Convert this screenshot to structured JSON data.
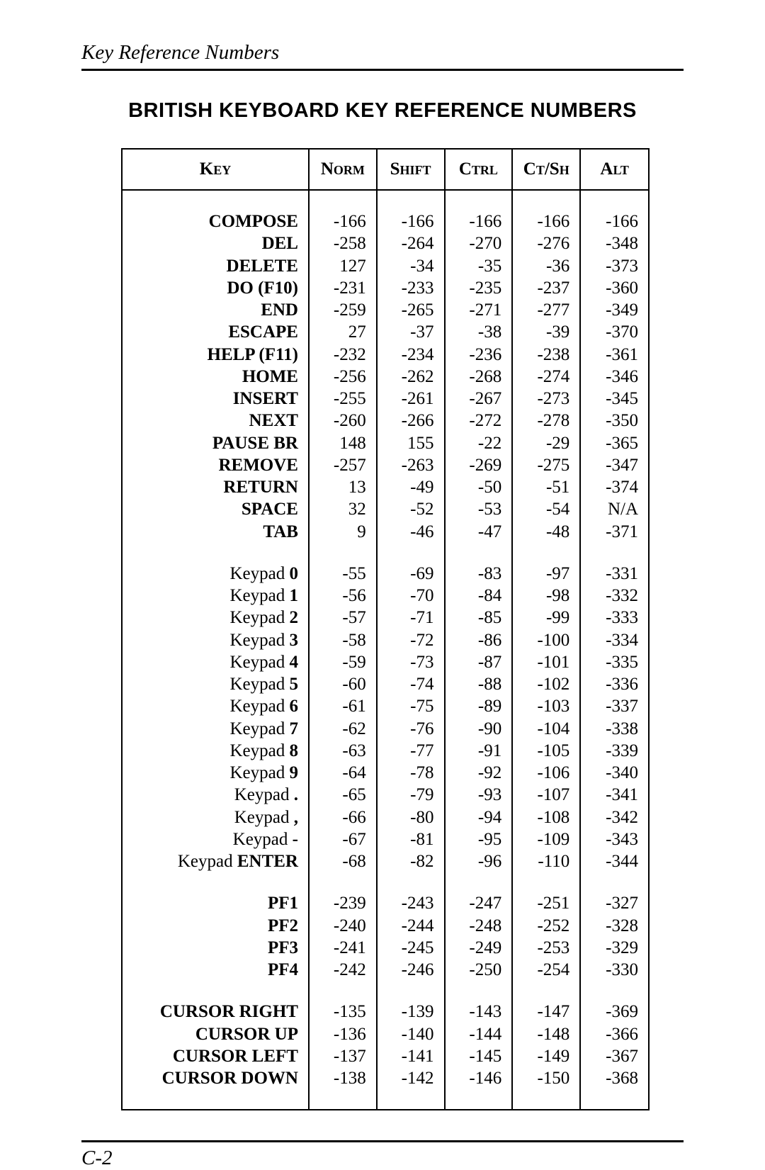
{
  "header": "Key Reference Numbers",
  "title": "BRITISH KEYBOARD KEY REFERENCE NUMBERS",
  "page_number": "C-2",
  "columns": [
    "Key",
    "Norm",
    "Shift",
    "Ctrl",
    "Ct/Sh",
    "Alt"
  ],
  "colors": {
    "text": "#000000",
    "bg": "#ffffff",
    "rule": "#000000"
  },
  "font_sizes": {
    "body": 25,
    "header": 29,
    "title": 29
  },
  "sections": [
    {
      "rows": [
        {
          "key_prefix": "",
          "key_bold": "COMPOSE",
          "norm": "-166",
          "shift": "-166",
          "ctrl": "-166",
          "ctsh": "-166",
          "alt": "-166"
        },
        {
          "key_prefix": "",
          "key_bold": "DEL",
          "norm": "-258",
          "shift": "-264",
          "ctrl": "-270",
          "ctsh": "-276",
          "alt": "-348"
        },
        {
          "key_prefix": "",
          "key_bold": "DELETE",
          "norm": "127",
          "shift": "-34",
          "ctrl": "-35",
          "ctsh": "-36",
          "alt": "-373"
        },
        {
          "key_prefix": "",
          "key_bold": "DO (F10)",
          "norm": "-231",
          "shift": "-233",
          "ctrl": "-235",
          "ctsh": "-237",
          "alt": "-360"
        },
        {
          "key_prefix": "",
          "key_bold": "END",
          "norm": "-259",
          "shift": "-265",
          "ctrl": "-271",
          "ctsh": "-277",
          "alt": "-349"
        },
        {
          "key_prefix": "",
          "key_bold": "ESCAPE",
          "norm": "27",
          "shift": "-37",
          "ctrl": "-38",
          "ctsh": "-39",
          "alt": "-370"
        },
        {
          "key_prefix": "",
          "key_bold": "HELP (F11)",
          "norm": "-232",
          "shift": "-234",
          "ctrl": "-236",
          "ctsh": "-238",
          "alt": "-361"
        },
        {
          "key_prefix": "",
          "key_bold": "HOME",
          "norm": "-256",
          "shift": "-262",
          "ctrl": "-268",
          "ctsh": "-274",
          "alt": "-346"
        },
        {
          "key_prefix": "",
          "key_bold": "INSERT",
          "norm": "-255",
          "shift": "-261",
          "ctrl": "-267",
          "ctsh": "-273",
          "alt": "-345"
        },
        {
          "key_prefix": "",
          "key_bold": "NEXT",
          "norm": "-260",
          "shift": "-266",
          "ctrl": "-272",
          "ctsh": "-278",
          "alt": "-350"
        },
        {
          "key_prefix": "",
          "key_bold": "PAUSE BR",
          "norm": "148",
          "shift": "155",
          "ctrl": "-22",
          "ctsh": "-29",
          "alt": "-365"
        },
        {
          "key_prefix": "",
          "key_bold": "REMOVE",
          "norm": "-257",
          "shift": "-263",
          "ctrl": "-269",
          "ctsh": "-275",
          "alt": "-347"
        },
        {
          "key_prefix": "",
          "key_bold": "RETURN",
          "norm": "13",
          "shift": "-49",
          "ctrl": "-50",
          "ctsh": "-51",
          "alt": "-374"
        },
        {
          "key_prefix": "",
          "key_bold": "SPACE",
          "norm": "32",
          "shift": "-52",
          "ctrl": "-53",
          "ctsh": "-54",
          "alt": "N/A"
        },
        {
          "key_prefix": "",
          "key_bold": "TAB",
          "norm": "9",
          "shift": "-46",
          "ctrl": "-47",
          "ctsh": "-48",
          "alt": "-371"
        }
      ]
    },
    {
      "rows": [
        {
          "key_prefix": "Keypad ",
          "key_bold": "0",
          "norm": "-55",
          "shift": "-69",
          "ctrl": "-83",
          "ctsh": "-97",
          "alt": "-331"
        },
        {
          "key_prefix": "Keypad ",
          "key_bold": "1",
          "norm": "-56",
          "shift": "-70",
          "ctrl": "-84",
          "ctsh": "-98",
          "alt": "-332"
        },
        {
          "key_prefix": "Keypad ",
          "key_bold": "2",
          "norm": "-57",
          "shift": "-71",
          "ctrl": "-85",
          "ctsh": "-99",
          "alt": "-333"
        },
        {
          "key_prefix": "Keypad ",
          "key_bold": "3",
          "norm": "-58",
          "shift": "-72",
          "ctrl": "-86",
          "ctsh": "-100",
          "alt": "-334"
        },
        {
          "key_prefix": "Keypad ",
          "key_bold": "4",
          "norm": "-59",
          "shift": "-73",
          "ctrl": "-87",
          "ctsh": "-101",
          "alt": "-335"
        },
        {
          "key_prefix": "Keypad ",
          "key_bold": "5",
          "norm": "-60",
          "shift": "-74",
          "ctrl": "-88",
          "ctsh": "-102",
          "alt": "-336"
        },
        {
          "key_prefix": "Keypad ",
          "key_bold": "6",
          "norm": "-61",
          "shift": "-75",
          "ctrl": "-89",
          "ctsh": "-103",
          "alt": "-337"
        },
        {
          "key_prefix": "Keypad ",
          "key_bold": "7",
          "norm": "-62",
          "shift": "-76",
          "ctrl": "-90",
          "ctsh": "-104",
          "alt": "-338"
        },
        {
          "key_prefix": "Keypad ",
          "key_bold": "8",
          "norm": "-63",
          "shift": "-77",
          "ctrl": "-91",
          "ctsh": "-105",
          "alt": "-339"
        },
        {
          "key_prefix": "Keypad ",
          "key_bold": "9",
          "norm": "-64",
          "shift": "-78",
          "ctrl": "-92",
          "ctsh": "-106",
          "alt": "-340"
        },
        {
          "key_prefix": "Keypad ",
          "key_bold": ".",
          "norm": "-65",
          "shift": "-79",
          "ctrl": "-93",
          "ctsh": "-107",
          "alt": "-341"
        },
        {
          "key_prefix": "Keypad ",
          "key_bold": ",",
          "norm": "-66",
          "shift": "-80",
          "ctrl": "-94",
          "ctsh": "-108",
          "alt": "-342"
        },
        {
          "key_prefix": "Keypad ",
          "key_bold": "-",
          "norm": "-67",
          "shift": "-81",
          "ctrl": "-95",
          "ctsh": "-109",
          "alt": "-343"
        },
        {
          "key_prefix": "Keypad ",
          "key_bold": "ENTER",
          "norm": "-68",
          "shift": "-82",
          "ctrl": "-96",
          "ctsh": "-110",
          "alt": "-344"
        }
      ]
    },
    {
      "rows": [
        {
          "key_prefix": "",
          "key_bold": "PF1",
          "norm": "-239",
          "shift": "-243",
          "ctrl": "-247",
          "ctsh": "-251",
          "alt": "-327"
        },
        {
          "key_prefix": "",
          "key_bold": "PF2",
          "norm": "-240",
          "shift": "-244",
          "ctrl": "-248",
          "ctsh": "-252",
          "alt": "-328"
        },
        {
          "key_prefix": "",
          "key_bold": "PF3",
          "norm": "-241",
          "shift": "-245",
          "ctrl": "-249",
          "ctsh": "-253",
          "alt": "-329"
        },
        {
          "key_prefix": "",
          "key_bold": "PF4",
          "norm": "-242",
          "shift": "-246",
          "ctrl": "-250",
          "ctsh": "-254",
          "alt": "-330"
        }
      ]
    },
    {
      "rows": [
        {
          "key_prefix": "",
          "key_bold": "CURSOR RIGHT",
          "norm": "-135",
          "shift": "-139",
          "ctrl": "-143",
          "ctsh": "-147",
          "alt": "-369"
        },
        {
          "key_prefix": "",
          "key_bold": "CURSOR UP",
          "norm": "-136",
          "shift": "-140",
          "ctrl": "-144",
          "ctsh": "-148",
          "alt": "-366"
        },
        {
          "key_prefix": "",
          "key_bold": "CURSOR LEFT",
          "norm": "-137",
          "shift": "-141",
          "ctrl": "-145",
          "ctsh": "-149",
          "alt": "-367"
        },
        {
          "key_prefix": "",
          "key_bold": "CURSOR DOWN",
          "norm": "-138",
          "shift": "-142",
          "ctrl": "-146",
          "ctsh": "-150",
          "alt": "-368"
        }
      ]
    }
  ]
}
